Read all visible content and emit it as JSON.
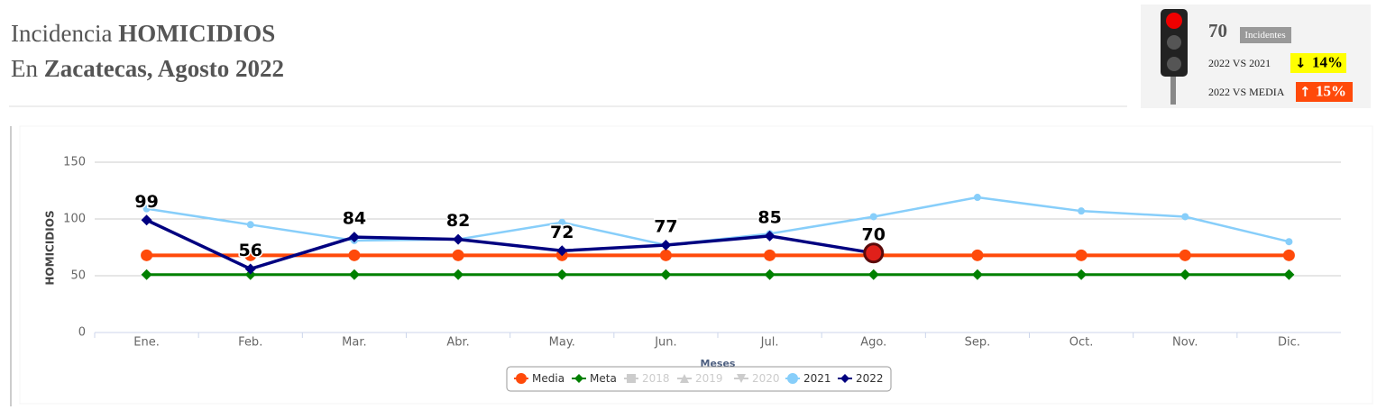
{
  "header": {
    "line1_prefix": "Incidencia",
    "line1_bold": "HOMICIDIOS",
    "line2_prefix": "En",
    "line2_bold": "Zacatecas, Agosto 2022"
  },
  "indicator": {
    "count": "70",
    "badge": "Incidentes",
    "vs_2021_label": "2022 VS 2021",
    "vs_2021_value": "14%",
    "vs_media_label": "2022 VS MEDIA",
    "vs_media_value": "15%"
  },
  "chart_data": {
    "type": "line",
    "x_label": "Meses",
    "y_label": "HOMICIDIOS",
    "categories": [
      "Ene.",
      "Feb.",
      "Mar.",
      "Abr.",
      "May.",
      "Jun.",
      "Jul.",
      "Ago.",
      "Sep.",
      "Oct.",
      "Nov.",
      "Dic."
    ],
    "ylim": [
      0,
      150
    ],
    "yticks": [
      0,
      50,
      100,
      150
    ],
    "grid": true,
    "series": [
      {
        "name": "Media",
        "color": "#ff4a0a",
        "marker": "circle",
        "values": [
          68,
          68,
          68,
          68,
          68,
          68,
          68,
          68,
          68,
          68,
          68,
          68
        ]
      },
      {
        "name": "Meta",
        "color": "#008000",
        "marker": "diamond",
        "values": [
          51,
          51,
          51,
          51,
          51,
          51,
          51,
          51,
          51,
          51,
          51,
          51
        ]
      },
      {
        "name": "2018",
        "color": "#cccccc",
        "marker": "square",
        "visible": false
      },
      {
        "name": "2019",
        "color": "#cccccc",
        "marker": "triangle",
        "visible": false
      },
      {
        "name": "2020",
        "color": "#cccccc",
        "marker": "triangle-down",
        "visible": false
      },
      {
        "name": "2021",
        "color": "#87cefa",
        "marker": "circle",
        "values": [
          109,
          95,
          81,
          82,
          97,
          77,
          87,
          102,
          119,
          107,
          102,
          80
        ]
      },
      {
        "name": "2022",
        "color": "#000080",
        "marker": "diamond",
        "data_labels": true,
        "values": [
          99,
          56,
          84,
          82,
          72,
          77,
          85,
          70,
          null,
          null,
          null,
          null
        ]
      }
    ]
  }
}
